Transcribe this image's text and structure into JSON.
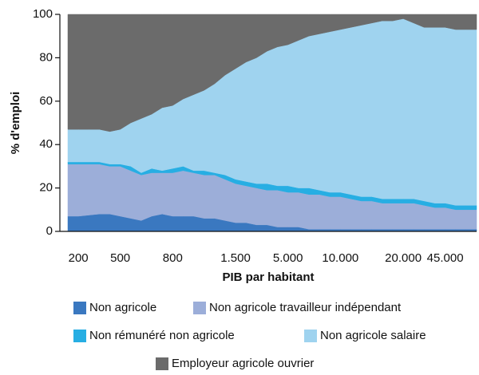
{
  "chart_data": {
    "type": "stacked-area",
    "xlabel": "PIB par habitant",
    "ylabel": "% d'emploi",
    "categories": [
      null,
      "200",
      null,
      null,
      null,
      "500",
      null,
      null,
      null,
      null,
      "800",
      null,
      null,
      null,
      null,
      null,
      "1.500",
      null,
      null,
      null,
      null,
      "5.000",
      null,
      null,
      null,
      null,
      "10.000",
      null,
      null,
      null,
      null,
      null,
      "20.000",
      null,
      null,
      null,
      "45.000",
      null,
      null,
      null
    ],
    "ylim": [
      0,
      100
    ],
    "yticks": [
      0,
      20,
      40,
      60,
      80,
      100
    ],
    "series": [
      {
        "name": "Non agricole",
        "color": "#3a78c0",
        "values": [
          7,
          7,
          7.5,
          8,
          8,
          7,
          6,
          5,
          7,
          8,
          7,
          7,
          7,
          6,
          6,
          5,
          4,
          4,
          3,
          3,
          2,
          2,
          2,
          1,
          1,
          1,
          1,
          1,
          1,
          1,
          1,
          1,
          1,
          1,
          1,
          1,
          1,
          1,
          1,
          1
        ]
      },
      {
        "name": "Non agricole travailleur indépendant",
        "color": "#9caed9",
        "values": [
          24,
          24,
          23.5,
          23,
          22,
          23,
          22,
          21,
          20,
          19,
          20,
          21,
          20,
          20,
          20,
          19,
          18,
          17,
          17,
          16,
          17,
          16,
          16,
          16,
          16,
          15,
          15,
          14,
          13,
          13,
          12,
          12,
          12,
          12,
          11,
          10,
          10,
          9,
          9,
          9
        ]
      },
      {
        "name": "Non rémunéré non agricole",
        "color": "#27aee3",
        "values": [
          1,
          1,
          1,
          1,
          1,
          1,
          2,
          1,
          2,
          1,
          2,
          2,
          1,
          2,
          1,
          2,
          2,
          2,
          2,
          3,
          2,
          3,
          2,
          3,
          2,
          2,
          2,
          2,
          2,
          2,
          2,
          2,
          2,
          2,
          2,
          2,
          2,
          2,
          2,
          2
        ]
      },
      {
        "name": "Non agricole salaire",
        "color": "#9fd3ef",
        "values": [
          15,
          15,
          15,
          15,
          15,
          16,
          20,
          25,
          25,
          29,
          29,
          31,
          35,
          37,
          41,
          46,
          51,
          55,
          58,
          61,
          64,
          65,
          68,
          70,
          72,
          74,
          75,
          77,
          79,
          80,
          82,
          82,
          83,
          81,
          80,
          81,
          81,
          81,
          81,
          81
        ]
      },
      {
        "name": "Employeur agricole ouvrier",
        "color": "#6b6b6b",
        "values": [
          53,
          53,
          53,
          53,
          54,
          53,
          50,
          48,
          46,
          43,
          42,
          39,
          37,
          35,
          32,
          28,
          25,
          22,
          20,
          17,
          15,
          14,
          12,
          10,
          9,
          8,
          7,
          6,
          5,
          4,
          3,
          3,
          2,
          4,
          6,
          6,
          6,
          7,
          7,
          7
        ]
      }
    ]
  }
}
